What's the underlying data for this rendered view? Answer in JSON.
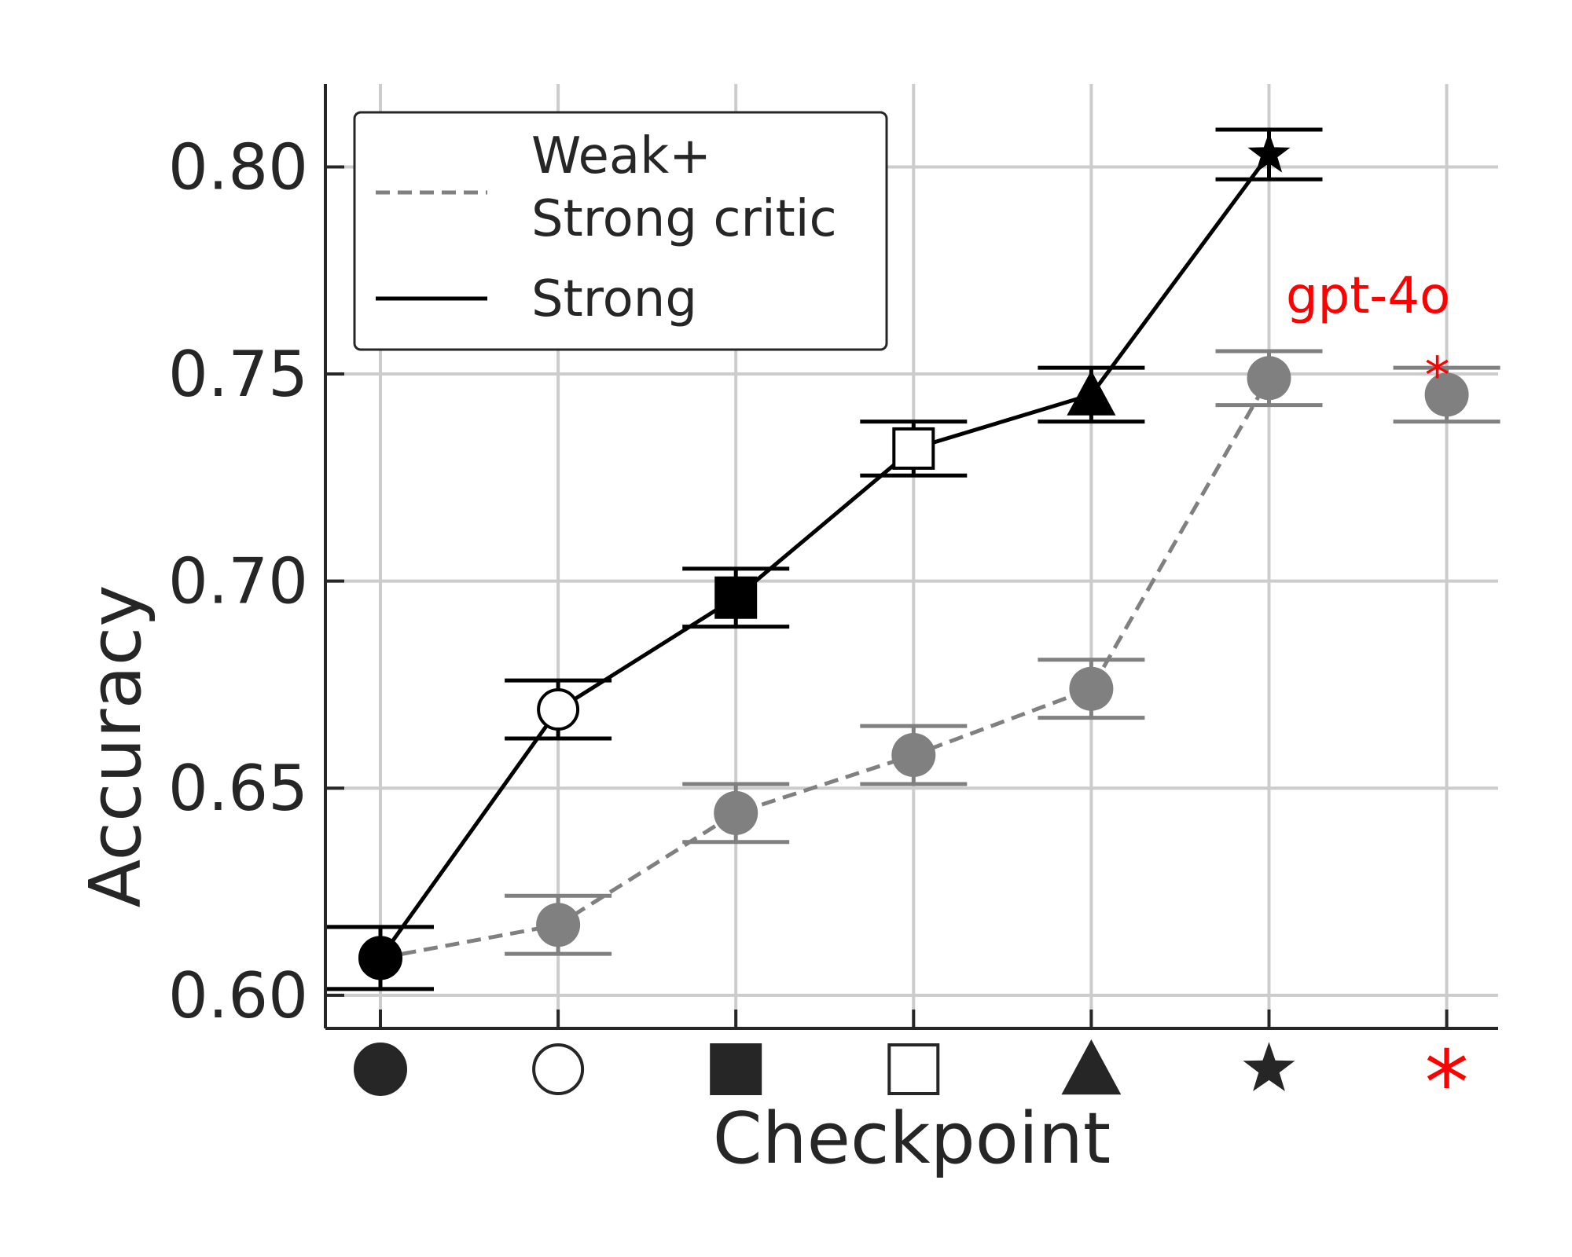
{
  "chart_data": {
    "type": "line",
    "xlabel": "Checkpoint",
    "ylabel": "Accuracy",
    "ylim": [
      0.592,
      0.82
    ],
    "yticks": [
      0.6,
      0.65,
      0.7,
      0.75,
      0.8
    ],
    "ytick_labels": [
      "0.60",
      "0.65",
      "0.70",
      "0.75",
      "0.80"
    ],
    "grid": true,
    "categories": [
      "circle-filled",
      "circle-open",
      "square-filled",
      "square-open",
      "triangle-filled",
      "star-filled",
      "asterisk-red"
    ],
    "category_colors": [
      "#262626",
      "#262626",
      "#262626",
      "#262626",
      "#262626",
      "#262626",
      "#ff0000"
    ],
    "series": [
      {
        "name": "Strong",
        "color": "#000000",
        "dash": "solid",
        "x": [
          0,
          1,
          2,
          3,
          4,
          5
        ],
        "values": [
          0.609,
          0.669,
          0.696,
          0.732,
          0.745,
          0.803
        ],
        "errors": [
          0.0075,
          0.007,
          0.007,
          0.0065,
          0.0065,
          0.006
        ],
        "markers": [
          "circle-filled",
          "circle-open",
          "square-filled",
          "square-open",
          "triangle-filled",
          "star-filled"
        ]
      },
      {
        "name": "Weak+\nStrong critic",
        "color": "#808080",
        "dash": "dashed",
        "x": [
          0,
          1,
          2,
          3,
          4,
          5,
          6
        ],
        "values": [
          0.609,
          0.617,
          0.644,
          0.658,
          0.674,
          0.749,
          0.745
        ],
        "errors": [
          0.0075,
          0.007,
          0.007,
          0.007,
          0.007,
          0.0065,
          0.0065
        ],
        "connected_points": 6
      }
    ],
    "legend": {
      "placement": "top-left",
      "entries": [
        {
          "label_lines": [
            "Weak+",
            "Strong critic"
          ],
          "color": "#808080",
          "dash": "dashed"
        },
        {
          "label_lines": [
            "Strong"
          ],
          "color": "#000000",
          "dash": "solid"
        }
      ]
    },
    "annotations": [
      {
        "text": "gpt-4o",
        "color": "#ff0000",
        "near_category": 6,
        "at_value": 0.769
      },
      {
        "text": "*",
        "color": "#ff0000",
        "near_category": 6,
        "at_value": 0.753
      }
    ]
  }
}
